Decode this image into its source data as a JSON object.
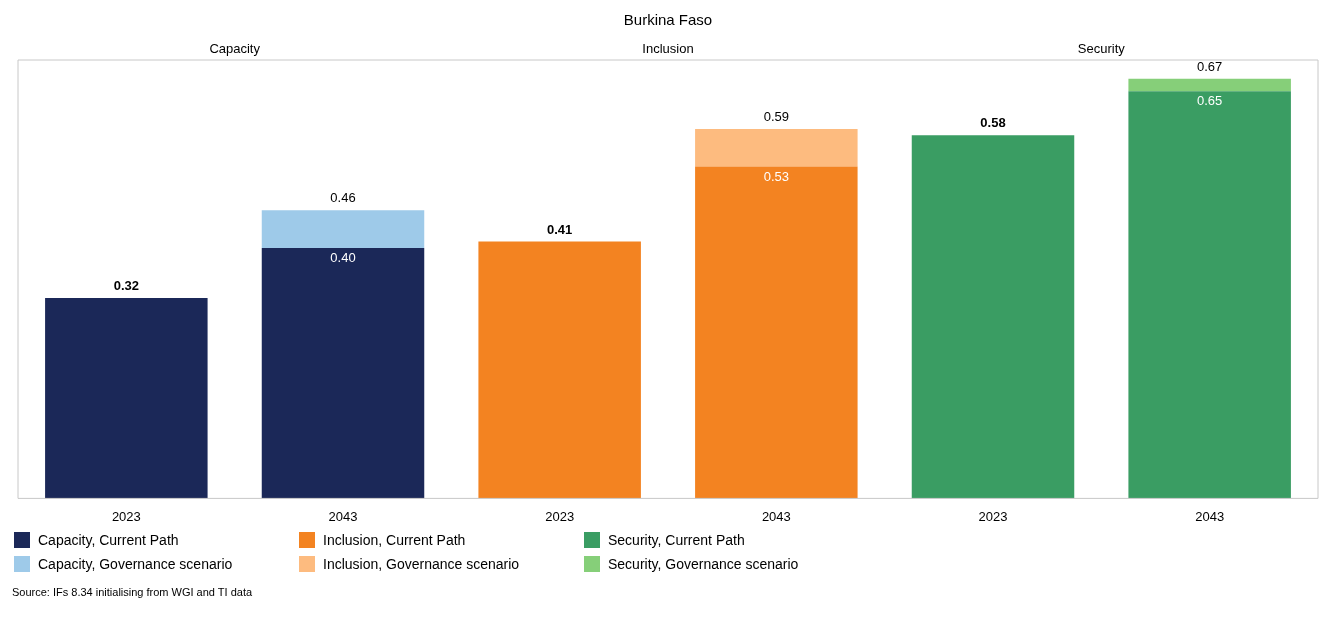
{
  "chart_data": {
    "type": "bar",
    "title": "Burkina Faso",
    "stacked": true,
    "legend": "bottom",
    "categories": [
      "2023",
      "2043",
      "2023",
      "2043",
      "2023",
      "2043"
    ],
    "series": [
      {
        "name": "Capacity, Current Path",
        "color": "#1b2858",
        "values": [
          0.32,
          0.4,
          null,
          null,
          null,
          null
        ],
        "value_labels": [
          "0.32",
          "0.40",
          null,
          null,
          null,
          null
        ]
      },
      {
        "name": "Capacity, Governance scenario",
        "color": "#9ecae9",
        "values": [
          null,
          0.06,
          null,
          null,
          null,
          null
        ]
      },
      {
        "name": "Inclusion, Current Path",
        "color": "#f38321",
        "values": [
          null,
          null,
          0.41,
          0.53,
          null,
          null
        ],
        "value_labels": [
          null,
          null,
          "0.41",
          "0.53",
          null,
          null
        ]
      },
      {
        "name": "Inclusion, Governance scenario",
        "color": "#fdbb7f",
        "values": [
          null,
          null,
          null,
          0.06,
          null,
          null
        ]
      },
      {
        "name": "Security, Current Path",
        "color": "#3a9d63",
        "values": [
          null,
          null,
          null,
          null,
          0.58,
          0.65
        ],
        "value_labels": [
          null,
          null,
          null,
          null,
          "0.58",
          "0.65"
        ]
      },
      {
        "name": "Security, Governance scenario",
        "color": "#86cf79",
        "values": [
          null,
          null,
          null,
          null,
          null,
          0.02
        ]
      }
    ],
    "totals": [
      null,
      "0.46",
      null,
      "0.59",
      null,
      "0.67"
    ],
    "annotations": [
      "Capacity",
      "Inclusion",
      "Security",
      "Source: IFs 8.34 initialising from WGI and TI data"
    ],
    "grid": false
  }
}
